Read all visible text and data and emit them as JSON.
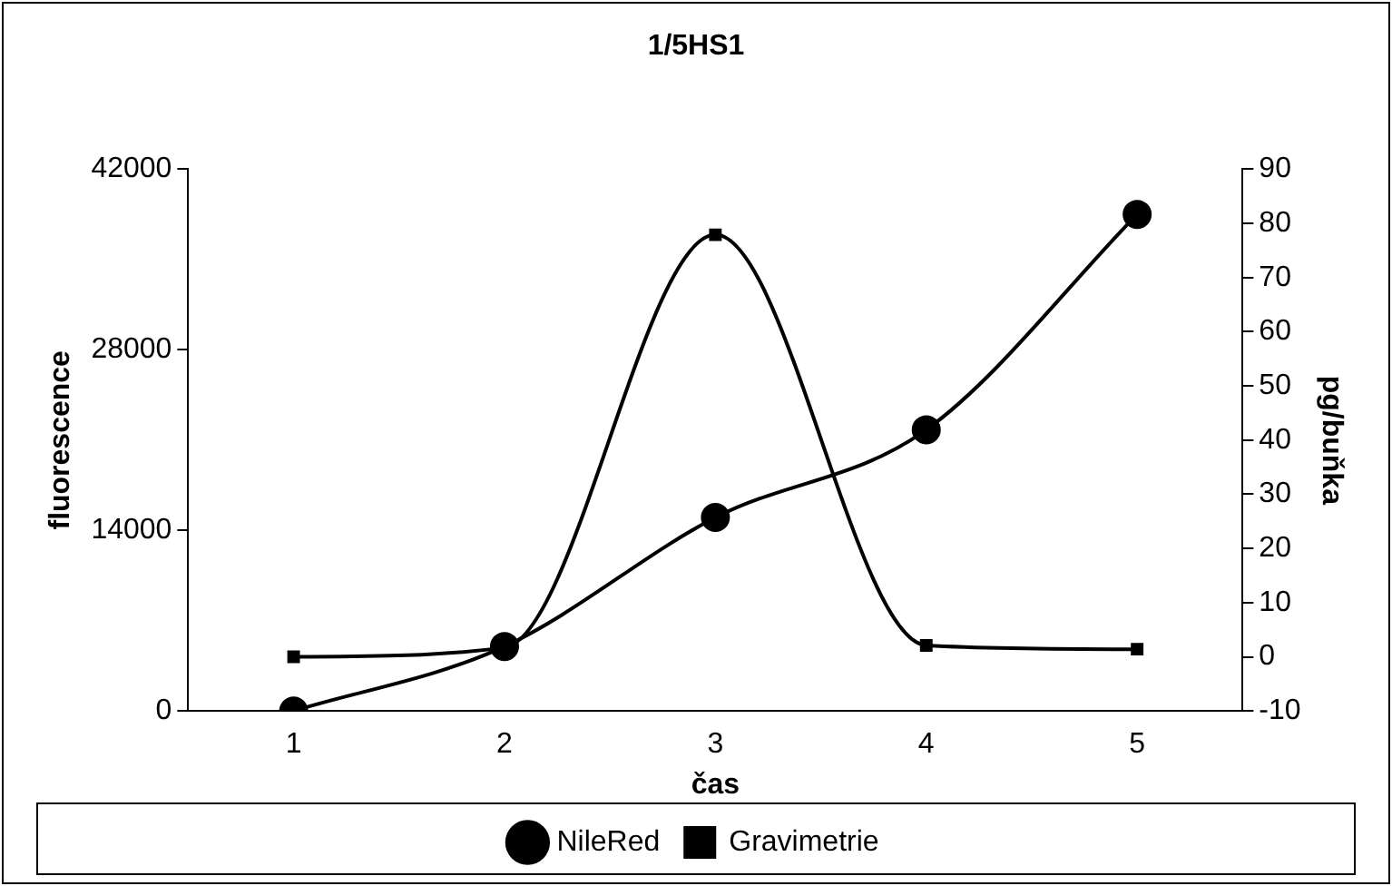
{
  "chart_data": {
    "type": "line",
    "title": "1/5HS1",
    "xlabel": "čas",
    "ylabel": "fluorescence",
    "y2label": "pg/buňka",
    "categories": [
      "1",
      "2",
      "3",
      "4",
      "5"
    ],
    "series": [
      {
        "name": "NileRed",
        "color": "#000000",
        "marker": "circle",
        "values": [
          0,
          5000,
          15000,
          21800,
          38500
        ]
      },
      {
        "name": "Gravimetrie",
        "color": "#000000",
        "marker": "square",
        "axis": "y2",
        "values": [
          0,
          1.7,
          77.9,
          2.1,
          1.4
        ]
      }
    ],
    "ylim": [
      0,
      42000
    ],
    "yticks": [
      0,
      14000,
      28000,
      42000
    ],
    "y2lim": [
      -10,
      90
    ],
    "y2ticks": [
      -10,
      0,
      10,
      20,
      30,
      40,
      50,
      60,
      70,
      80,
      90
    ],
    "grid": false,
    "legend": "bottom"
  }
}
